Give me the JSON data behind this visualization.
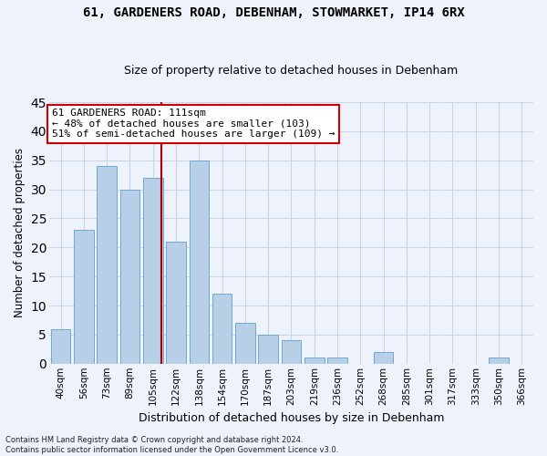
{
  "title": "61, GARDENERS ROAD, DEBENHAM, STOWMARKET, IP14 6RX",
  "subtitle": "Size of property relative to detached houses in Debenham",
  "xlabel": "Distribution of detached houses by size in Debenham",
  "ylabel": "Number of detached properties",
  "bar_labels": [
    "40sqm",
    "56sqm",
    "73sqm",
    "89sqm",
    "105sqm",
    "122sqm",
    "138sqm",
    "154sqm",
    "170sqm",
    "187sqm",
    "203sqm",
    "219sqm",
    "236sqm",
    "252sqm",
    "268sqm",
    "285sqm",
    "301sqm",
    "317sqm",
    "333sqm",
    "350sqm",
    "366sqm"
  ],
  "bar_values": [
    6,
    23,
    34,
    30,
    32,
    21,
    35,
    12,
    7,
    5,
    4,
    1,
    1,
    0,
    2,
    0,
    0,
    0,
    0,
    1,
    0
  ],
  "bar_color": "#b8cfe8",
  "bar_edge_color": "#6fa8d0",
  "grid_color": "#c8d4e8",
  "vline_color": "#aa0000",
  "annotation_text": "61 GARDENERS ROAD: 111sqm\n← 48% of detached houses are smaller (103)\n51% of semi-detached houses are larger (109) →",
  "annotation_box_color": "#ffffff",
  "annotation_box_edge_color": "#cc0000",
  "ylim": [
    0,
    45
  ],
  "yticks": [
    0,
    5,
    10,
    15,
    20,
    25,
    30,
    35,
    40,
    45
  ],
  "footer_line1": "Contains HM Land Registry data © Crown copyright and database right 2024.",
  "footer_line2": "Contains public sector information licensed under the Open Government Licence v3.0.",
  "bg_color": "#eef2fa",
  "title_fontsize": 10,
  "subtitle_fontsize": 9
}
